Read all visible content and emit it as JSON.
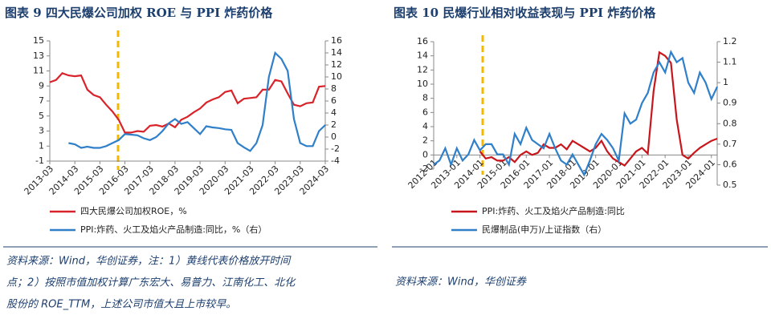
{
  "chart_data": [
    {
      "type": "line",
      "title": "图表 9   四大民爆公司加权 ROE 与 PPI 炸药价格",
      "x": [
        "2013-03",
        "2013-06",
        "2013-09",
        "2013-12",
        "2014-03",
        "2014-06",
        "2014-09",
        "2014-12",
        "2015-03",
        "2015-06",
        "2015-09",
        "2015-12",
        "2016-03",
        "2016-06",
        "2016-09",
        "2016-12",
        "2017-03",
        "2017-06",
        "2017-09",
        "2017-12",
        "2018-03",
        "2018-06",
        "2018-09",
        "2018-12",
        "2019-03",
        "2019-06",
        "2019-09",
        "2019-12",
        "2020-03",
        "2020-06",
        "2020-09",
        "2020-12",
        "2021-03",
        "2021-06",
        "2021-09",
        "2021-12",
        "2022-03",
        "2022-06",
        "2022-09",
        "2022-12",
        "2023-03",
        "2023-06",
        "2023-09",
        "2023-12",
        "2024-03"
      ],
      "xticks": [
        "2013-03",
        "2014-03",
        "2015-03",
        "2016-03",
        "2017-03",
        "2018-03",
        "2019-03",
        "2020-03",
        "2021-03",
        "2022-03",
        "2023-03",
        "2024-03"
      ],
      "ylim": [
        -1,
        15
      ],
      "yticks": [
        -1,
        1,
        3,
        5,
        7,
        9,
        11,
        13,
        15
      ],
      "y2lim": [
        -4,
        16
      ],
      "y2ticks": [
        -4,
        -2,
        0,
        2,
        4,
        6,
        8,
        10,
        12,
        14,
        16
      ],
      "series": [
        {
          "name": "四大民爆公司加权ROE，%",
          "color": "#d9232b",
          "values": [
            9.5,
            9.8,
            10.7,
            10.4,
            10.3,
            10.4,
            8.5,
            7.8,
            7.5,
            6.5,
            5.6,
            4.5,
            2.8,
            2.8,
            3.0,
            2.9,
            3.7,
            3.8,
            3.6,
            4.0,
            3.5,
            4.5,
            4.9,
            5.5,
            6.0,
            6.8,
            7.2,
            7.5,
            8.2,
            8.4,
            6.7,
            7.3,
            7.4,
            7.5,
            8.5,
            8.5,
            9.8,
            9.6,
            8.0,
            6.5,
            6.3,
            6.7,
            6.8,
            8.9,
            9.0
          ]
        },
        {
          "name": "PPI:炸药、火工及焰火产品制造:同比，%（右）",
          "color": "#2f7fc9",
          "axis": "y2",
          "values": [
            null,
            null,
            null,
            -1.0,
            -1.2,
            -1.8,
            -1.6,
            -1.8,
            -1.8,
            -1.5,
            -1.0,
            -0.5,
            0.5,
            0.4,
            0.3,
            -0.2,
            -0.5,
            0.0,
            1.0,
            2.3,
            3.0,
            2.2,
            2.5,
            1.5,
            0.5,
            1.8,
            1.6,
            1.5,
            1.3,
            1.2,
            -1.0,
            -1.7,
            -2.3,
            -1.0,
            2.0,
            10.0,
            14.0,
            13.0,
            11.0,
            3.0,
            -1.0,
            -1.5,
            -1.5,
            1.0,
            2.0
          ]
        }
      ],
      "source": [
        "资料来源：Wind，华创证券，注：1）黄线代表价格放开时间",
        "点；2）按照市值加权计算广东宏大、易普力、江南化工、北化",
        "股份的 ROE_TTM，上述公司市值大且上市较早。"
      ]
    },
    {
      "type": "line",
      "title": "图表 10   民爆行业相对收益表现与 PPI 炸药价格",
      "x": [
        "2012-01",
        "2012-04",
        "2012-07",
        "2012-10",
        "2013-01",
        "2013-04",
        "2013-07",
        "2013-10",
        "2014-01",
        "2014-04",
        "2014-07",
        "2014-10",
        "2015-01",
        "2015-04",
        "2015-07",
        "2015-10",
        "2016-01",
        "2016-04",
        "2016-07",
        "2016-10",
        "2017-01",
        "2017-04",
        "2017-07",
        "2017-10",
        "2018-01",
        "2018-04",
        "2018-07",
        "2018-10",
        "2019-01",
        "2019-04",
        "2019-07",
        "2019-10",
        "2020-01",
        "2020-04",
        "2020-07",
        "2020-10",
        "2021-01",
        "2021-04",
        "2021-07",
        "2021-10",
        "2022-01",
        "2022-04",
        "2022-07",
        "2022-10",
        "2023-01",
        "2023-04",
        "2023-07",
        "2023-10",
        "2024-01",
        "2024-04"
      ],
      "xticks": [
        "2012-01",
        "2013-01",
        "2014-01",
        "2015-01",
        "2016-01",
        "2017-01",
        "2018-01",
        "2019-01",
        "2020-01",
        "2021-01",
        "2022-01",
        "2023-01",
        "2024-01"
      ],
      "ylim": [
        -2,
        16
      ],
      "yticks": [
        -2,
        0,
        2,
        4,
        6,
        8,
        10,
        12,
        14,
        16
      ],
      "y2lim": [
        0.5,
        1.2
      ],
      "y2ticks": [
        0.5,
        0.6,
        0.7,
        0.8,
        0.9,
        1,
        1.1,
        1.2
      ],
      "series": [
        {
          "name": "PPI:炸药、火工及焰火产品制造:同比",
          "color": "#c8161d",
          "values": [
            null,
            null,
            null,
            null,
            null,
            null,
            null,
            null,
            0.5,
            -0.5,
            -0.3,
            -0.8,
            -0.8,
            -0.3,
            -1.0,
            0.0,
            0.5,
            0.0,
            0.3,
            1.5,
            1.0,
            1.0,
            1.5,
            0.8,
            2.0,
            1.5,
            1.0,
            0.5,
            1.0,
            2.0,
            0.5,
            -0.5,
            -1.0,
            -1.5,
            -0.5,
            0.5,
            1.0,
            0.2,
            9.0,
            14.5,
            14.0,
            13.0,
            5.0,
            0.0,
            -0.5,
            0.3,
            1.0,
            1.5,
            2.0,
            2.3
          ]
        },
        {
          "name": "民爆制品(申万)/上证指数（右）",
          "color": "#2f7fc9",
          "axis": "y2",
          "values": [
            0.6,
            0.62,
            0.68,
            0.6,
            0.68,
            0.62,
            0.65,
            0.72,
            0.67,
            0.7,
            0.7,
            0.65,
            0.65,
            0.6,
            0.75,
            0.7,
            0.78,
            0.72,
            0.7,
            0.68,
            0.75,
            0.68,
            0.62,
            0.6,
            0.65,
            0.6,
            0.55,
            0.62,
            0.7,
            0.75,
            0.72,
            0.68,
            0.62,
            0.85,
            0.8,
            0.82,
            0.9,
            0.95,
            1.05,
            1.1,
            1.05,
            1.15,
            1.1,
            1.12,
            1.0,
            0.95,
            1.05,
            1.0,
            0.92,
            0.98
          ]
        }
      ],
      "source": [
        "资料来源：Wind，华创证券"
      ]
    }
  ]
}
